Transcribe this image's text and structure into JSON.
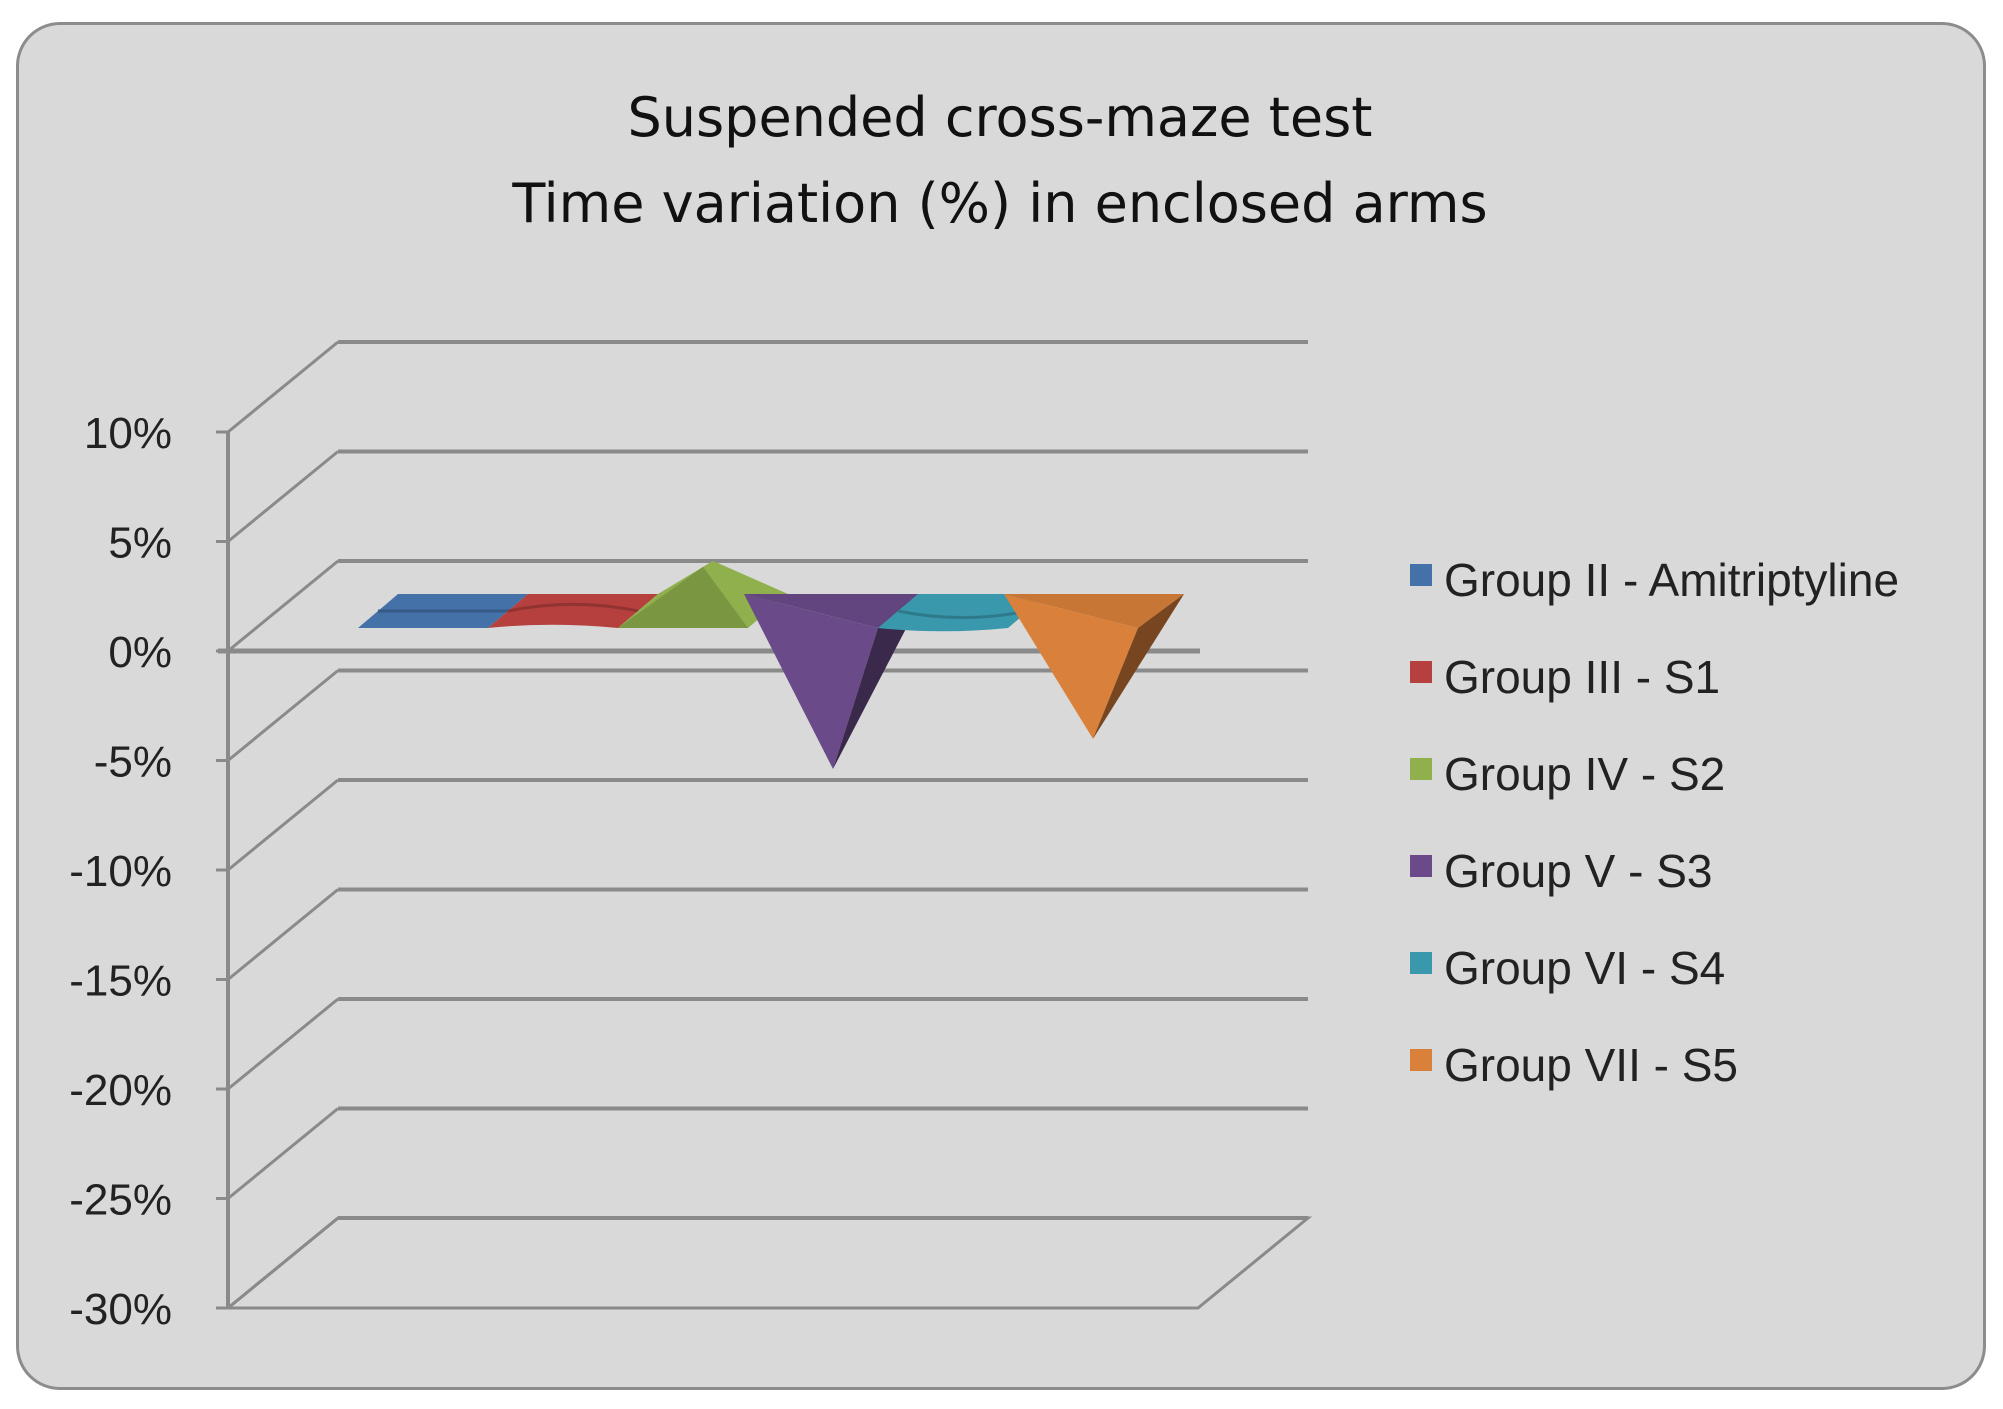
{
  "chart_data": {
    "type": "area",
    "title": [
      "Suspended cross-maze test",
      "Time variation (%) in enclosed arms"
    ],
    "xlabel": "",
    "ylabel": "",
    "ylim": [
      -30,
      10
    ],
    "yticks": [
      10,
      5,
      0,
      -5,
      -10,
      -15,
      -20,
      -25,
      -30
    ],
    "ytick_labels": [
      "10%",
      "5%",
      "0%",
      "-5%",
      "-10%",
      "-15%",
      "-20%",
      "-25%",
      "-30%"
    ],
    "grid": true,
    "legend_position": "right",
    "series": [
      {
        "name": "Group II - Amitriptyline",
        "color": "#4472a8",
        "values": [
          0,
          0,
          0
        ]
      },
      {
        "name": "Group III - S1",
        "color": "#b5403d",
        "values": [
          0,
          0.6,
          0
        ]
      },
      {
        "name": "Group IV - S2",
        "color": "#8fb04c",
        "values": [
          0,
          1.8,
          0
        ]
      },
      {
        "name": "Group V - S3",
        "color": "#6b4a8a",
        "values": [
          0,
          -7,
          0
        ]
      },
      {
        "name": "Group VI - S4",
        "color": "#3a98ad",
        "values": [
          0,
          -0.6,
          0
        ]
      },
      {
        "name": "Group VII - S5",
        "color": "#d9803a",
        "values": [
          0,
          -5.5,
          0
        ]
      }
    ]
  }
}
